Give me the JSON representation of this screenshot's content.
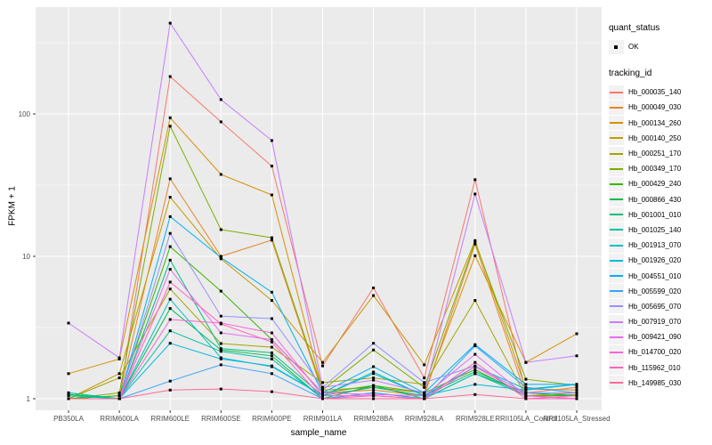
{
  "figure": {
    "background": "#FFFFFF",
    "panel_background": "#EBEBEB",
    "grid_color": "#FFFFFF",
    "tick_color": "#333333",
    "tick_label_color": "#4D4D4D",
    "marker_color": "#000000"
  },
  "axes": {
    "x_label": "sample_name",
    "y_label": "FPKM + 1",
    "y_tick_labels": [
      "1",
      "10",
      "100"
    ]
  },
  "legend": {
    "quant_title": "quant_status",
    "quant_items": [
      {
        "label": "OK"
      }
    ],
    "tracking_title": "tracking_id"
  },
  "chart_data": {
    "type": "line",
    "title": "",
    "xlabel": "sample_name",
    "ylabel": "FPKM + 1",
    "y_scale": "log10",
    "y_ticks": [
      1,
      10,
      100
    ],
    "y_minor_ticks": [
      3.162,
      31.62,
      316.2
    ],
    "ylim": [
      0.83,
      560
    ],
    "grid": "on",
    "legend_position": "right",
    "marker": "black-square",
    "x": [
      "PB350LA",
      "RRIM600LA",
      "RRIM600LE",
      "RRIM600SE",
      "RRIM600PE",
      "RRIM901LA",
      "RRIM928BA",
      "RRIM928LA",
      "RRIM928LE",
      "RRII105LA_Control",
      "RRII105LA_Stressed"
    ],
    "series": [
      {
        "name": "Hb_000035_140",
        "color": "#F8766D",
        "values": [
          1.0,
          1.0,
          183,
          88,
          43,
          1.7,
          6.0,
          1.4,
          34.5,
          1.1,
          1.2
        ]
      },
      {
        "name": "Hb_000049_030",
        "color": "#E88526",
        "values": [
          1.0,
          1.05,
          35,
          10,
          13,
          1.1,
          1.15,
          1.05,
          12.2,
          1.05,
          1.1
        ]
      },
      {
        "name": "Hb_000134_260",
        "color": "#D89000",
        "values": [
          1.5,
          1.9,
          94,
          37.6,
          27,
          1.15,
          1.2,
          1.1,
          10.1,
          1.8,
          2.86
        ]
      },
      {
        "name": "Hb_000140_250",
        "color": "#C49A00",
        "values": [
          1.0,
          1.5,
          26,
          9.6,
          4.9,
          1.8,
          5.3,
          1.73,
          12.9,
          1.17,
          1.15
        ]
      },
      {
        "name": "Hb_000251_170",
        "color": "#A3A500",
        "values": [
          1.0,
          1.4,
          5.9,
          2.44,
          2.3,
          1.3,
          1.4,
          1.26,
          4.9,
          1.04,
          1.07
        ]
      },
      {
        "name": "Hb_000349_170",
        "color": "#7CAE00",
        "values": [
          1.0,
          1.1,
          82,
          15.4,
          13.5,
          1.15,
          2.2,
          1.2,
          12.6,
          1.37,
          1.24
        ]
      },
      {
        "name": "Hb_000429_240",
        "color": "#39B600",
        "values": [
          1.0,
          1.05,
          11.7,
          5.7,
          2.6,
          1.1,
          1.24,
          1.1,
          1.6,
          1.05,
          1.05
        ]
      },
      {
        "name": "Hb_000866_430",
        "color": "#00BB4E",
        "values": [
          1.07,
          1.0,
          4.3,
          2.2,
          2.0,
          1.0,
          1.24,
          1.0,
          1.5,
          1.1,
          1.05
        ]
      },
      {
        "name": "Hb_001001_010",
        "color": "#00BF7D",
        "values": [
          1.1,
          1.0,
          9.4,
          2.25,
          2.1,
          1.05,
          1.2,
          1.05,
          1.55,
          1.1,
          1.05
        ]
      },
      {
        "name": "Hb_001025_140",
        "color": "#00C1A3",
        "values": [
          1.1,
          1.0,
          3.0,
          2.15,
          1.9,
          1.0,
          1.1,
          1.0,
          1.5,
          1.05,
          1.0
        ]
      },
      {
        "name": "Hb_001913_070",
        "color": "#00BFC4",
        "values": [
          1.05,
          1.0,
          5.0,
          1.94,
          1.68,
          1.05,
          1.54,
          1.05,
          1.68,
          1.17,
          1.26
        ]
      },
      {
        "name": "Hb_001926_020",
        "color": "#00BAE0",
        "values": [
          1.0,
          1.0,
          2.45,
          1.9,
          1.7,
          1.05,
          1.5,
          1.05,
          1.26,
          1.15,
          1.26
        ]
      },
      {
        "name": "Hb_004551_010",
        "color": "#00B0F6",
        "values": [
          1.0,
          1.0,
          19,
          9.8,
          5.6,
          1.1,
          1.68,
          1.1,
          2.4,
          1.26,
          1.26
        ]
      },
      {
        "name": "Hb_005599_020",
        "color": "#35A2FF",
        "values": [
          1.0,
          1.0,
          1.33,
          1.73,
          1.5,
          1.0,
          1.1,
          1.0,
          2.35,
          1.2,
          1.1
        ]
      },
      {
        "name": "Hb_005695_070",
        "color": "#9590FF",
        "values": [
          1.0,
          1.0,
          14.5,
          3.8,
          3.65,
          1.2,
          2.45,
          1.3,
          1.7,
          1.1,
          1.1
        ]
      },
      {
        "name": "Hb_007919_070",
        "color": "#C77CFF",
        "values": [
          3.4,
          1.94,
          434,
          126,
          65,
          1.2,
          1.35,
          1.1,
          27.4,
          1.8,
          2.0
        ]
      },
      {
        "name": "Hb_009421_090",
        "color": "#E76BF3",
        "values": [
          1.0,
          1.0,
          8.1,
          2.9,
          2.6,
          1.1,
          1.07,
          1.05,
          2.05,
          1.05,
          1.0
        ]
      },
      {
        "name": "Hb_014700_020",
        "color": "#FA62DB",
        "values": [
          1.0,
          1.0,
          3.6,
          3.4,
          2.9,
          1.05,
          1.05,
          1.0,
          1.68,
          1.05,
          1.0
        ]
      },
      {
        "name": "Hb_115962_010",
        "color": "#FF62BC",
        "values": [
          1.0,
          1.0,
          6.6,
          3.35,
          2.5,
          1.0,
          1.05,
          1.0,
          1.8,
          1.0,
          1.0
        ]
      },
      {
        "name": "Hb_149985_030",
        "color": "#FF6A98",
        "values": [
          1.0,
          1.0,
          1.15,
          1.17,
          1.12,
          1.0,
          1.0,
          1.0,
          1.07,
          1.0,
          1.05
        ]
      }
    ]
  }
}
